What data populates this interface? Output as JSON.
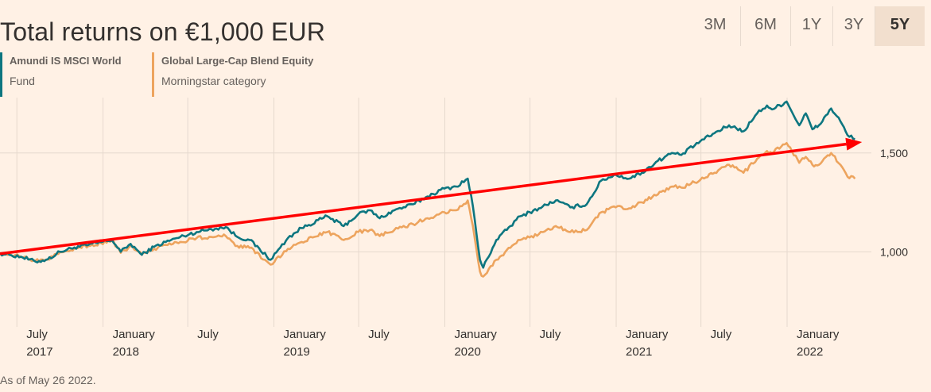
{
  "title": "Total returns on €1,000 EUR",
  "tabs": [
    {
      "label": "3M",
      "active": false
    },
    {
      "label": "6M",
      "active": false
    },
    {
      "label": "1Y",
      "active": false
    },
    {
      "label": "3Y",
      "active": false
    },
    {
      "label": "5Y",
      "active": true
    }
  ],
  "legend": [
    {
      "name": "Amundi IS MSCI World",
      "sub": "Fund",
      "color": "#0d7680"
    },
    {
      "name": "Global Large-Cap Blend Equity",
      "sub": "Morningstar category",
      "color": "#eda45e"
    }
  ],
  "footnote": "As of May 26 2022.",
  "colors": {
    "background": "#fff1e5",
    "grid": "#e6d9ce",
    "arrow": "#ff0000"
  },
  "chart_data": {
    "type": "line",
    "x_ticks": [
      {
        "date": "2017-07-01",
        "line1": "July",
        "line2": "2017"
      },
      {
        "date": "2018-01-01",
        "line1": "January",
        "line2": "2018"
      },
      {
        "date": "2018-07-01",
        "line1": "July",
        "line2": ""
      },
      {
        "date": "2019-01-01",
        "line1": "January",
        "line2": "2019"
      },
      {
        "date": "2019-07-01",
        "line1": "July",
        "line2": ""
      },
      {
        "date": "2020-01-01",
        "line1": "January",
        "line2": "2020"
      },
      {
        "date": "2020-07-01",
        "line1": "July",
        "line2": ""
      },
      {
        "date": "2021-01-01",
        "line1": "January",
        "line2": "2021"
      },
      {
        "date": "2021-07-01",
        "line1": "July",
        "line2": ""
      },
      {
        "date": "2022-01-01",
        "line1": "January",
        "line2": "2022"
      }
    ],
    "y_ticks": [
      1000,
      1500
    ],
    "y_tick_labels": [
      "1,000",
      "1,500"
    ],
    "ylim": [
      620,
      1780
    ],
    "xlim": [
      "2017-05-26",
      "2022-06-30"
    ],
    "series": [
      {
        "name": "Amundi IS MSCI World",
        "color": "#0d7680",
        "points": [
          [
            "2017-05-26",
            992
          ],
          [
            "2017-06-15",
            985
          ],
          [
            "2017-07-10",
            975
          ],
          [
            "2017-08-10",
            950
          ],
          [
            "2017-09-05",
            962
          ],
          [
            "2017-10-01",
            1000
          ],
          [
            "2017-11-01",
            1022
          ],
          [
            "2017-12-01",
            1035
          ],
          [
            "2018-01-20",
            1060
          ],
          [
            "2018-02-08",
            1000
          ],
          [
            "2018-03-01",
            1040
          ],
          [
            "2018-03-25",
            985
          ],
          [
            "2018-04-20",
            1025
          ],
          [
            "2018-05-15",
            1050
          ],
          [
            "2018-06-15",
            1075
          ],
          [
            "2018-07-20",
            1100
          ],
          [
            "2018-08-20",
            1115
          ],
          [
            "2018-09-20",
            1125
          ],
          [
            "2018-10-15",
            1075
          ],
          [
            "2018-11-10",
            1060
          ],
          [
            "2018-12-25",
            960
          ],
          [
            "2019-01-31",
            1070
          ],
          [
            "2019-03-01",
            1120
          ],
          [
            "2019-04-25",
            1180
          ],
          [
            "2019-05-30",
            1130
          ],
          [
            "2019-06-30",
            1190
          ],
          [
            "2019-07-25",
            1210
          ],
          [
            "2019-08-15",
            1170
          ],
          [
            "2019-09-15",
            1210
          ],
          [
            "2019-10-25",
            1240
          ],
          [
            "2019-11-25",
            1280
          ],
          [
            "2019-12-31",
            1320
          ],
          [
            "2020-01-25",
            1330
          ],
          [
            "2020-02-19",
            1370
          ],
          [
            "2020-03-01",
            1230
          ],
          [
            "2020-03-16",
            960
          ],
          [
            "2020-03-23",
            920
          ],
          [
            "2020-04-20",
            1060
          ],
          [
            "2020-05-20",
            1130
          ],
          [
            "2020-06-10",
            1180
          ],
          [
            "2020-07-20",
            1220
          ],
          [
            "2020-08-25",
            1260
          ],
          [
            "2020-09-25",
            1225
          ],
          [
            "2020-10-30",
            1240
          ],
          [
            "2020-11-30",
            1360
          ],
          [
            "2020-12-31",
            1390
          ],
          [
            "2021-01-29",
            1370
          ],
          [
            "2021-02-25",
            1400
          ],
          [
            "2021-03-31",
            1460
          ],
          [
            "2021-04-30",
            1500
          ],
          [
            "2021-05-20",
            1490
          ],
          [
            "2021-06-30",
            1560
          ],
          [
            "2021-07-30",
            1600
          ],
          [
            "2021-08-30",
            1640
          ],
          [
            "2021-09-30",
            1610
          ],
          [
            "2021-10-29",
            1700
          ],
          [
            "2021-11-19",
            1740
          ],
          [
            "2021-11-30",
            1720
          ],
          [
            "2021-12-31",
            1760
          ],
          [
            "2022-01-27",
            1640
          ],
          [
            "2022-02-10",
            1700
          ],
          [
            "2022-02-24",
            1620
          ],
          [
            "2022-03-10",
            1640
          ],
          [
            "2022-04-05",
            1725
          ],
          [
            "2022-04-25",
            1660
          ],
          [
            "2022-05-10",
            1590
          ],
          [
            "2022-05-26",
            1570
          ]
        ]
      },
      {
        "name": "Global Large-Cap Blend Equity",
        "color": "#eda45e",
        "points": [
          [
            "2017-05-26",
            992
          ],
          [
            "2017-06-15",
            987
          ],
          [
            "2017-07-10",
            975
          ],
          [
            "2017-08-10",
            955
          ],
          [
            "2017-09-05",
            962
          ],
          [
            "2017-10-01",
            998
          ],
          [
            "2017-11-01",
            1018
          ],
          [
            "2017-12-01",
            1030
          ],
          [
            "2018-01-20",
            1055
          ],
          [
            "2018-02-08",
            995
          ],
          [
            "2018-03-01",
            1030
          ],
          [
            "2018-03-25",
            985
          ],
          [
            "2018-04-20",
            1015
          ],
          [
            "2018-05-15",
            1035
          ],
          [
            "2018-06-15",
            1050
          ],
          [
            "2018-07-20",
            1070
          ],
          [
            "2018-08-20",
            1075
          ],
          [
            "2018-09-20",
            1080
          ],
          [
            "2018-10-15",
            1030
          ],
          [
            "2018-11-10",
            1020
          ],
          [
            "2018-12-25",
            935
          ],
          [
            "2019-01-31",
            1015
          ],
          [
            "2019-03-01",
            1050
          ],
          [
            "2019-04-25",
            1100
          ],
          [
            "2019-05-30",
            1060
          ],
          [
            "2019-06-30",
            1100
          ],
          [
            "2019-07-25",
            1110
          ],
          [
            "2019-08-15",
            1080
          ],
          [
            "2019-09-15",
            1110
          ],
          [
            "2019-10-25",
            1140
          ],
          [
            "2019-11-25",
            1170
          ],
          [
            "2019-12-31",
            1200
          ],
          [
            "2020-01-25",
            1210
          ],
          [
            "2020-02-19",
            1260
          ],
          [
            "2020-03-01",
            1130
          ],
          [
            "2020-03-16",
            900
          ],
          [
            "2020-03-23",
            875
          ],
          [
            "2020-04-20",
            960
          ],
          [
            "2020-05-20",
            1020
          ],
          [
            "2020-06-10",
            1060
          ],
          [
            "2020-07-20",
            1090
          ],
          [
            "2020-08-25",
            1130
          ],
          [
            "2020-09-25",
            1100
          ],
          [
            "2020-10-30",
            1110
          ],
          [
            "2020-11-30",
            1200
          ],
          [
            "2020-12-31",
            1225
          ],
          [
            "2021-01-29",
            1220
          ],
          [
            "2021-02-25",
            1250
          ],
          [
            "2021-03-31",
            1290
          ],
          [
            "2021-04-30",
            1330
          ],
          [
            "2021-05-20",
            1325
          ],
          [
            "2021-06-30",
            1365
          ],
          [
            "2021-07-30",
            1400
          ],
          [
            "2021-08-30",
            1440
          ],
          [
            "2021-09-30",
            1400
          ],
          [
            "2021-10-29",
            1470
          ],
          [
            "2021-11-19",
            1510
          ],
          [
            "2021-11-30",
            1500
          ],
          [
            "2021-12-31",
            1550
          ],
          [
            "2022-01-27",
            1450
          ],
          [
            "2022-02-10",
            1480
          ],
          [
            "2022-02-24",
            1440
          ],
          [
            "2022-03-10",
            1440
          ],
          [
            "2022-04-05",
            1500
          ],
          [
            "2022-04-25",
            1440
          ],
          [
            "2022-05-10",
            1380
          ],
          [
            "2022-05-26",
            1370
          ]
        ]
      }
    ],
    "annotation_arrow": {
      "start": [
        "2017-05-26",
        990
      ],
      "end": [
        "2022-06-10",
        1555
      ],
      "color": "#ff0000"
    }
  }
}
